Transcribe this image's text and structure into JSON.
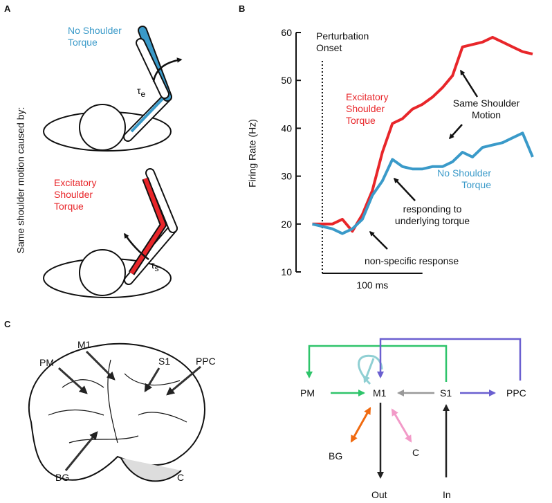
{
  "panel_a": {
    "letter": "A",
    "side_label": "Same shoulder motion caused by:",
    "top_label": "No Shoulder Torque",
    "bottom_label": "Excitatory Shoulder Torque",
    "tau_top": {
      "symbol": "τ",
      "sub": "e"
    },
    "tau_bottom": {
      "symbol": "τ",
      "sub": "s"
    }
  },
  "chart_data": {
    "type": "line",
    "letter": "B",
    "ylabel": "Firing Rate (Hz)",
    "x": [
      -10,
      0,
      10,
      20,
      30,
      40,
      50,
      60,
      70,
      80,
      90,
      100,
      110,
      120,
      130,
      140,
      150,
      160,
      170,
      180,
      190,
      200,
      210
    ],
    "xlim": [
      -12.4,
      218.3
    ],
    "ylim": [
      10,
      60
    ],
    "yticks": [
      10,
      20,
      30,
      40,
      50,
      60
    ],
    "onset_x": 0,
    "onset_label": "Perturbation Onset",
    "scale_bar": {
      "length": 100,
      "label": "100 ms"
    },
    "series": [
      {
        "name": "Excitatory Shoulder Torque",
        "color": "#e8262a",
        "values": [
          20,
          20,
          20,
          21,
          18.5,
          22,
          27,
          35,
          41,
          42,
          44,
          45,
          46.5,
          48.5,
          51,
          57,
          57.5,
          58,
          59,
          58,
          57,
          56,
          55.5
        ]
      },
      {
        "name": "No Shoulder Torque",
        "color": "#3a9ac9",
        "values": [
          20,
          19.5,
          19,
          18,
          19,
          21,
          26,
          29,
          33.5,
          32,
          31.5,
          31.5,
          32,
          32,
          33,
          35,
          34,
          36,
          36.5,
          37,
          38,
          39,
          34
        ]
      }
    ],
    "annotations": [
      "Same Shoulder Motion",
      "responding to underlying torque",
      "non-specific response"
    ]
  },
  "panel_c": {
    "letter": "C",
    "brain_labels": [
      "PM",
      "M1",
      "S1",
      "PPC",
      "BG",
      "C"
    ],
    "nodes": [
      "PM",
      "M1",
      "S1",
      "PPC",
      "BG",
      "C",
      "Out",
      "In"
    ]
  }
}
